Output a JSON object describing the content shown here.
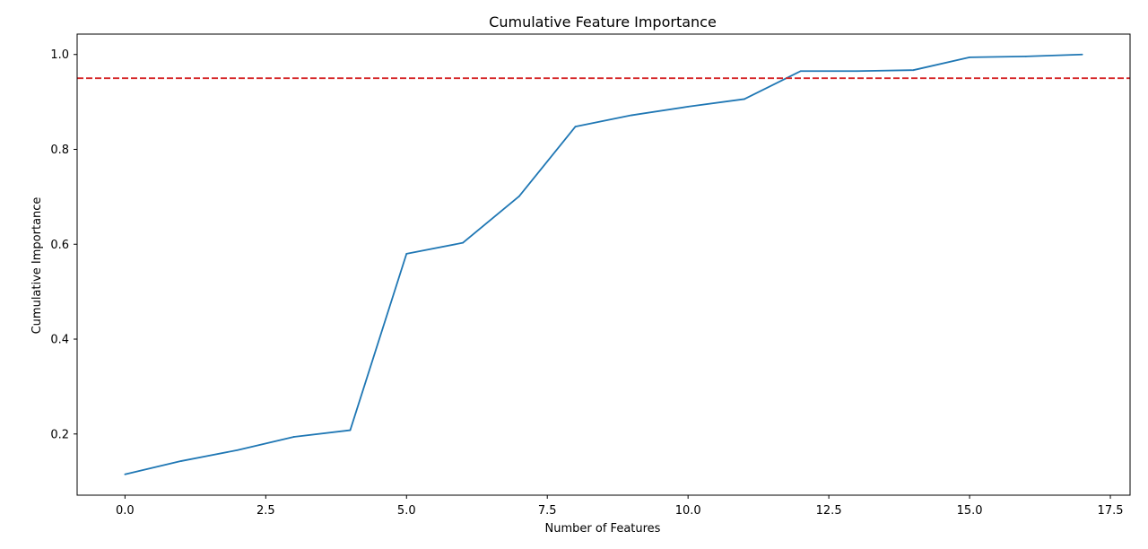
{
  "chart_data": {
    "type": "line",
    "title": "Cumulative Feature Importance",
    "xlabel": "Number of Features",
    "ylabel": "Cumulative Importance",
    "xlim": [
      -0.85,
      17.85
    ],
    "ylim": [
      0.071,
      1.043
    ],
    "x_ticks": [
      0.0,
      2.5,
      5.0,
      7.5,
      10.0,
      12.5,
      15.0,
      17.5
    ],
    "x_tick_labels": [
      "0.0",
      "2.5",
      "5.0",
      "7.5",
      "10.0",
      "12.5",
      "15.0",
      "17.5"
    ],
    "y_ticks": [
      0.2,
      0.4,
      0.6,
      0.8,
      1.0
    ],
    "y_tick_labels": [
      "0.2",
      "0.4",
      "0.6",
      "0.8",
      "1.0"
    ],
    "grid": false,
    "series": [
      {
        "color": "#1f77b4",
        "x": [
          0,
          1,
          2,
          3,
          4,
          5,
          6,
          7,
          8,
          9,
          10,
          11,
          12,
          13,
          14,
          15,
          16,
          17
        ],
        "y": [
          0.115,
          0.143,
          0.166,
          0.194,
          0.208,
          0.58,
          0.603,
          0.701,
          0.848,
          0.872,
          0.89,
          0.906,
          0.965,
          0.965,
          0.967,
          0.994,
          0.996,
          1.0
        ]
      }
    ],
    "threshold": {
      "y": 0.95,
      "color": "#d62728",
      "style": "dashed"
    }
  }
}
